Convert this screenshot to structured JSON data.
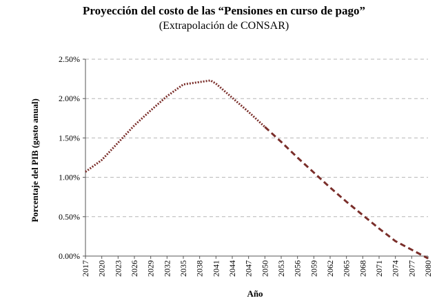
{
  "chart_data": {
    "type": "line",
    "title": "Proyección del costo de las “Pensiones en curso de pago”",
    "subtitle": "(Extrapolación de CONSAR)",
    "xlabel": "Año",
    "ylabel": "Porcentaje del PIB (gasto anual)",
    "ylim": [
      0,
      0.025
    ],
    "yticks": [
      "0.00%",
      "0.50%",
      "1.00%",
      "1.50%",
      "2.00%",
      "2.50%"
    ],
    "grid": true,
    "categories": [
      "2017",
      "2020",
      "2023",
      "2026",
      "2029",
      "2032",
      "2035",
      "2038",
      "2041",
      "2044",
      "2047",
      "2050",
      "2053",
      "2056",
      "2059",
      "2062",
      "2065",
      "2068",
      "2071",
      "2074",
      "2077",
      "2080"
    ],
    "series": [
      {
        "style": "dotted",
        "color": "#7a2e2a",
        "x": [
          2017,
          2020,
          2023,
          2026,
          2029,
          2032,
          2035,
          2038,
          2040,
          2041,
          2044,
          2047,
          2050
        ],
        "values": [
          0.0107,
          0.0122,
          0.0144,
          0.0166,
          0.0185,
          0.0203,
          0.0218,
          0.0221,
          0.0223,
          0.0219,
          0.0201,
          0.0183,
          0.0164
        ]
      },
      {
        "style": "dashed",
        "color": "#7a2e2a",
        "x": [
          2050,
          2053,
          2056,
          2059,
          2062,
          2065,
          2068,
          2071,
          2074,
          2077,
          2080
        ],
        "values": [
          0.0164,
          0.0145,
          0.0125,
          0.0106,
          0.0087,
          0.0069,
          0.0052,
          0.0035,
          0.0019,
          0.0008,
          -0.0003
        ]
      }
    ]
  }
}
